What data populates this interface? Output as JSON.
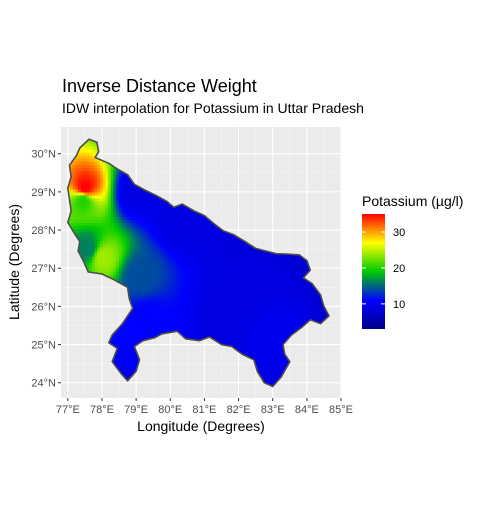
{
  "title": "Inverse Distance Weight",
  "subtitle": "IDW interpolation for Potassium in Uttar Pradesh",
  "legend": {
    "title": "Potassium (µg/l)",
    "ticks": [
      {
        "value": 30,
        "label": "30"
      },
      {
        "value": 20,
        "label": "20"
      },
      {
        "value": 10,
        "label": "10"
      }
    ],
    "range": [
      3,
      35
    ],
    "colors": [
      "#00008b",
      "#0000ff",
      "#00cc00",
      "#ffff00",
      "#ff0000"
    ]
  },
  "chart_data": {
    "type": "heatmap",
    "title": "Inverse Distance Weight",
    "subtitle": "IDW interpolation for Potassium in Uttar Pradesh",
    "xlabel": "Longitude (Degrees)",
    "ylabel": "Latitude (Degrees)",
    "xlim": [
      76.8,
      85.0
    ],
    "ylim": [
      23.6,
      30.7
    ],
    "grid": true,
    "legend_position": "right",
    "x_ticks": [
      {
        "value": 77,
        "label": "77°E"
      },
      {
        "value": 78,
        "label": "78°E"
      },
      {
        "value": 79,
        "label": "79°E"
      },
      {
        "value": 80,
        "label": "80°E"
      },
      {
        "value": 81,
        "label": "81°E"
      },
      {
        "value": 82,
        "label": "82°E"
      },
      {
        "value": 83,
        "label": "83°E"
      },
      {
        "value": 84,
        "label": "84°E"
      },
      {
        "value": 85,
        "label": "85°E"
      }
    ],
    "y_ticks": [
      {
        "value": 24,
        "label": "24°N"
      },
      {
        "value": 25,
        "label": "25°N"
      },
      {
        "value": 26,
        "label": "26°N"
      },
      {
        "value": 27,
        "label": "27°N"
      },
      {
        "value": 28,
        "label": "28°N"
      },
      {
        "value": 29,
        "label": "29°N"
      },
      {
        "value": 30,
        "label": "30°N"
      }
    ],
    "background_value": 5,
    "hotspots": [
      {
        "lon": 77.5,
        "lat": 29.1,
        "value": 35
      },
      {
        "lon": 77.45,
        "lat": 28.8,
        "value": 20
      },
      {
        "lon": 78.0,
        "lat": 27.3,
        "value": 24
      },
      {
        "lon": 77.6,
        "lat": 27.5,
        "value": 16
      },
      {
        "lon": 79.1,
        "lat": 26.8,
        "value": 14
      },
      {
        "lon": 79.3,
        "lat": 25.7,
        "value": 11
      },
      {
        "lon": 80.3,
        "lat": 28.3,
        "value": 9
      },
      {
        "lon": 79.0,
        "lat": 29.0,
        "value": 9
      },
      {
        "lon": 83.0,
        "lat": 25.3,
        "value": 10
      },
      {
        "lon": 82.0,
        "lat": 25.9,
        "value": 9
      },
      {
        "lon": 82.5,
        "lat": 26.4,
        "value": 9
      }
    ],
    "boundary_lonlat": [
      [
        77.62,
        30.38
      ],
      [
        77.85,
        30.3
      ],
      [
        77.9,
        30.05
      ],
      [
        77.8,
        29.9
      ],
      [
        78.2,
        29.75
      ],
      [
        78.45,
        29.6
      ],
      [
        78.75,
        29.45
      ],
      [
        78.95,
        29.2
      ],
      [
        79.25,
        29.05
      ],
      [
        79.6,
        28.9
      ],
      [
        79.9,
        28.75
      ],
      [
        80.1,
        28.6
      ],
      [
        80.35,
        28.68
      ],
      [
        80.7,
        28.5
      ],
      [
        81.0,
        28.38
      ],
      [
        81.3,
        28.15
      ],
      [
        81.55,
        27.98
      ],
      [
        81.85,
        27.88
      ],
      [
        82.15,
        27.72
      ],
      [
        82.5,
        27.52
      ],
      [
        82.8,
        27.45
      ],
      [
        83.1,
        27.38
      ],
      [
        83.4,
        27.37
      ],
      [
        83.78,
        27.35
      ],
      [
        84.0,
        27.2
      ],
      [
        84.1,
        26.95
      ],
      [
        83.9,
        26.75
      ],
      [
        84.15,
        26.6
      ],
      [
        84.4,
        26.3
      ],
      [
        84.5,
        26.0
      ],
      [
        84.65,
        25.75
      ],
      [
        84.4,
        25.55
      ],
      [
        84.1,
        25.65
      ],
      [
        83.85,
        25.45
      ],
      [
        83.55,
        25.25
      ],
      [
        83.3,
        25.0
      ],
      [
        83.35,
        24.75
      ],
      [
        83.5,
        24.55
      ],
      [
        83.25,
        24.15
      ],
      [
        83.0,
        23.9
      ],
      [
        82.75,
        24.0
      ],
      [
        82.55,
        24.3
      ],
      [
        82.45,
        24.6
      ],
      [
        82.1,
        24.75
      ],
      [
        81.8,
        24.95
      ],
      [
        81.5,
        25.0
      ],
      [
        81.15,
        25.2
      ],
      [
        80.85,
        25.1
      ],
      [
        80.45,
        25.15
      ],
      [
        80.2,
        25.35
      ],
      [
        79.75,
        25.28
      ],
      [
        79.55,
        25.18
      ],
      [
        79.2,
        25.1
      ],
      [
        78.95,
        24.95
      ],
      [
        79.1,
        24.6
      ],
      [
        79.0,
        24.3
      ],
      [
        78.75,
        24.05
      ],
      [
        78.55,
        24.25
      ],
      [
        78.3,
        24.55
      ],
      [
        78.45,
        24.9
      ],
      [
        78.2,
        25.05
      ],
      [
        78.3,
        25.25
      ],
      [
        78.6,
        25.55
      ],
      [
        78.9,
        25.95
      ],
      [
        78.8,
        26.2
      ],
      [
        78.75,
        26.5
      ],
      [
        78.35,
        26.7
      ],
      [
        78.0,
        26.85
      ],
      [
        77.6,
        26.9
      ],
      [
        77.55,
        27.0
      ],
      [
        77.45,
        27.2
      ],
      [
        77.3,
        27.45
      ],
      [
        77.35,
        27.7
      ],
      [
        77.2,
        27.9
      ],
      [
        77.0,
        28.2
      ],
      [
        77.1,
        28.5
      ],
      [
        77.05,
        28.8
      ],
      [
        77.0,
        29.1
      ],
      [
        77.1,
        29.4
      ],
      [
        77.05,
        29.7
      ],
      [
        77.25,
        29.95
      ],
      [
        77.35,
        30.15
      ]
    ]
  }
}
